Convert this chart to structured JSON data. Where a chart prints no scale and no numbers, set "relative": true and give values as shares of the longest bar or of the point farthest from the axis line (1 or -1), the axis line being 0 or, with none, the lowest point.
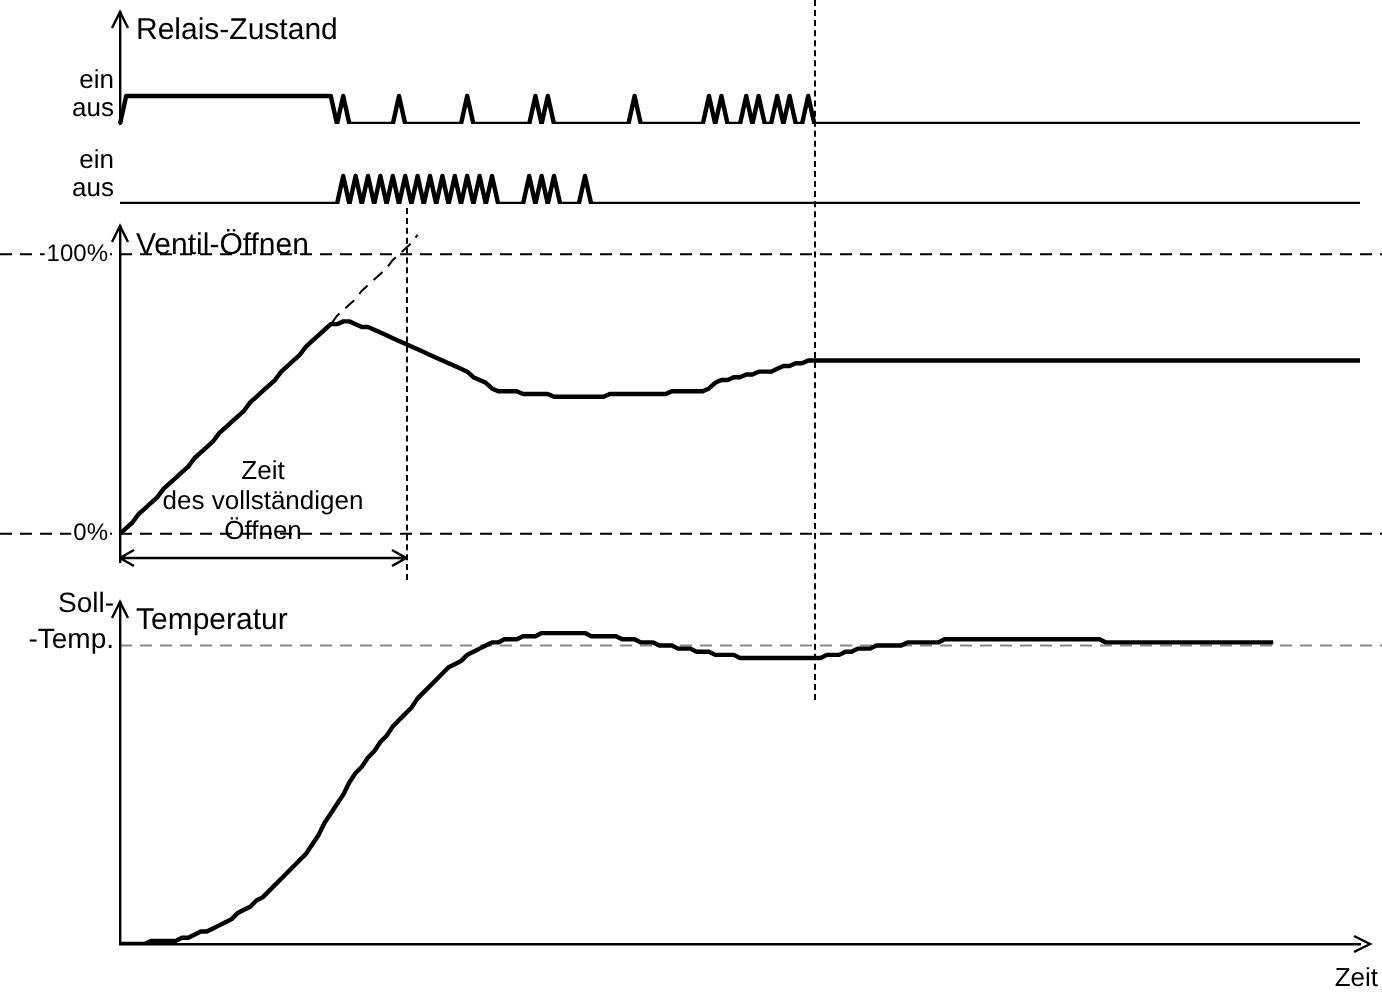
{
  "chart_data": [
    {
      "type": "line",
      "title": "Relais-Zustand",
      "relative": true,
      "tick_labels": false,
      "grid": false,
      "annotations": [
        "ein",
        "aus"
      ],
      "categories": [
        null,
        null,
        null,
        null,
        null,
        null,
        null,
        null,
        null,
        null,
        null,
        null,
        null,
        null,
        null,
        null,
        null,
        null,
        null,
        null,
        null,
        null,
        null,
        null,
        null,
        null,
        null,
        null,
        null,
        null,
        null,
        null,
        null,
        null,
        null,
        null,
        null,
        null,
        null,
        null,
        null,
        null,
        null,
        null,
        null,
        null,
        null,
        null,
        null,
        null,
        null,
        null,
        null,
        null,
        null,
        null,
        null,
        null,
        null,
        null,
        null,
        null,
        null,
        null,
        null,
        null,
        null,
        null,
        null,
        null,
        null,
        null,
        null,
        null,
        null,
        null,
        null,
        null,
        null,
        null,
        null,
        null,
        null,
        null,
        null,
        null,
        null,
        null,
        null,
        null,
        null,
        null,
        null,
        null,
        null,
        null,
        null,
        null,
        null,
        null,
        null,
        null,
        null,
        null,
        null,
        null,
        null,
        null,
        null,
        null,
        null,
        null,
        null,
        null,
        null,
        null,
        null,
        null,
        null,
        null,
        null,
        null,
        null,
        null,
        null,
        null,
        null,
        null,
        null,
        null,
        null,
        null,
        null,
        null,
        null,
        null,
        null,
        null,
        null,
        null,
        null,
        null,
        null,
        null,
        null,
        null,
        null,
        null,
        null,
        null,
        null,
        null,
        null,
        null,
        null,
        null,
        null,
        null,
        null,
        null,
        null,
        null,
        null,
        null,
        null,
        null,
        null,
        null,
        null,
        null,
        null,
        null,
        null,
        null,
        null,
        null,
        null,
        null,
        null,
        null,
        null,
        null,
        null,
        null,
        null,
        null,
        null,
        null,
        null,
        null,
        null,
        null,
        null,
        null,
        null,
        null,
        null,
        null,
        null,
        null,
        null
      ],
      "series": [
        {
          "color": "#000000",
          "values": [
            0,
            1,
            1,
            1,
            1,
            1,
            1,
            1,
            1,
            1,
            1,
            1,
            1,
            1,
            1,
            1,
            1,
            1,
            1,
            1,
            1,
            1,
            1,
            1,
            1,
            1,
            1,
            1,
            1,
            1,
            1,
            1,
            1,
            1,
            1,
            0,
            1,
            0,
            0,
            0,
            0,
            0,
            0,
            0,
            0,
            1,
            0,
            0,
            0,
            0,
            0,
            0,
            0,
            0,
            0,
            0,
            1,
            0,
            0,
            0,
            0,
            0,
            0,
            0,
            0,
            0,
            0,
            1,
            0,
            1,
            0,
            0,
            0,
            0,
            0,
            0,
            0,
            0,
            0,
            0,
            0,
            0,
            0,
            1,
            0,
            0,
            0,
            0,
            0,
            0,
            0,
            0,
            0,
            0,
            0,
            1,
            0,
            1,
            0,
            0,
            0,
            1,
            0,
            1,
            0,
            0,
            1,
            0,
            1,
            0,
            0,
            1,
            0,
            0,
            0,
            0,
            0,
            0,
            0,
            0,
            0,
            0,
            0,
            0,
            0,
            0,
            0,
            0,
            0,
            0,
            0,
            0,
            0,
            0,
            0,
            0,
            0,
            0,
            0,
            0,
            0,
            0,
            0,
            0,
            0,
            0,
            0,
            0,
            0,
            0,
            0,
            0,
            0,
            0,
            0,
            0,
            0,
            0,
            0,
            0,
            0,
            0,
            0,
            0,
            0,
            0,
            0,
            0,
            0,
            0,
            0,
            0,
            0,
            0,
            0,
            0,
            0,
            0,
            0,
            0,
            0,
            0,
            0,
            0,
            0,
            0,
            0,
            0,
            0,
            0,
            0,
            0,
            0,
            0,
            0,
            0,
            0,
            0,
            0,
            0,
            0
          ]
        }
      ]
    },
    {
      "type": "line",
      "relative": true,
      "tick_labels": false,
      "grid": false,
      "annotations": [
        "ein",
        "aus"
      ],
      "categories": [
        null,
        null,
        null,
        null,
        null,
        null,
        null,
        null,
        null,
        null,
        null,
        null,
        null,
        null,
        null,
        null,
        null,
        null,
        null,
        null,
        null,
        null,
        null,
        null,
        null,
        null,
        null,
        null,
        null,
        null,
        null,
        null,
        null,
        null,
        null,
        null,
        null,
        null,
        null,
        null,
        null,
        null,
        null,
        null,
        null,
        null,
        null,
        null,
        null,
        null,
        null,
        null,
        null,
        null,
        null,
        null,
        null,
        null,
        null,
        null,
        null,
        null,
        null,
        null,
        null,
        null,
        null,
        null,
        null,
        null,
        null,
        null,
        null,
        null,
        null,
        null,
        null,
        null,
        null,
        null,
        null,
        null,
        null,
        null,
        null,
        null,
        null,
        null,
        null,
        null,
        null,
        null,
        null,
        null,
        null,
        null,
        null,
        null,
        null,
        null,
        null,
        null,
        null,
        null,
        null,
        null,
        null,
        null,
        null,
        null,
        null,
        null,
        null,
        null,
        null,
        null,
        null,
        null,
        null,
        null,
        null,
        null,
        null,
        null,
        null,
        null,
        null,
        null,
        null,
        null,
        null,
        null,
        null,
        null,
        null,
        null,
        null,
        null,
        null,
        null,
        null,
        null,
        null,
        null,
        null,
        null,
        null,
        null,
        null,
        null,
        null,
        null,
        null,
        null,
        null,
        null,
        null,
        null,
        null,
        null,
        null,
        null,
        null,
        null,
        null,
        null,
        null,
        null,
        null,
        null,
        null,
        null,
        null,
        null,
        null,
        null,
        null,
        null,
        null,
        null,
        null,
        null,
        null,
        null,
        null,
        null,
        null,
        null,
        null,
        null,
        null,
        null,
        null,
        null,
        null,
        null,
        null,
        null,
        null,
        null,
        null
      ],
      "series": [
        {
          "color": "#000000",
          "values": [
            0,
            0,
            0,
            0,
            0,
            0,
            0,
            0,
            0,
            0,
            0,
            0,
            0,
            0,
            0,
            0,
            0,
            0,
            0,
            0,
            0,
            0,
            0,
            0,
            0,
            0,
            0,
            0,
            0,
            0,
            0,
            0,
            0,
            0,
            0,
            0,
            1,
            0,
            1,
            0,
            1,
            0,
            1,
            0,
            1,
            0,
            1,
            0,
            1,
            0,
            1,
            0,
            1,
            0,
            1,
            0,
            1,
            0,
            1,
            0,
            1,
            0,
            0,
            0,
            0,
            0,
            1,
            0,
            1,
            0,
            1,
            0,
            0,
            0,
            0,
            1,
            0,
            0,
            0,
            0,
            0,
            0,
            0,
            0,
            0,
            0,
            0,
            0,
            0,
            0,
            0,
            0,
            0,
            0,
            0,
            0,
            0,
            0,
            0,
            0,
            0,
            0,
            0,
            0,
            0,
            0,
            0,
            0,
            0,
            0,
            0,
            0,
            0,
            0,
            0,
            0,
            0,
            0,
            0,
            0,
            0,
            0,
            0,
            0,
            0,
            0,
            0,
            0,
            0,
            0,
            0,
            0,
            0,
            0,
            0,
            0,
            0,
            0,
            0,
            0,
            0,
            0,
            0,
            0,
            0,
            0,
            0,
            0,
            0,
            0,
            0,
            0,
            0,
            0,
            0,
            0,
            0,
            0,
            0,
            0,
            0,
            0,
            0,
            0,
            0,
            0,
            0,
            0,
            0,
            0,
            0,
            0,
            0,
            0,
            0,
            0,
            0,
            0,
            0,
            0,
            0,
            0,
            0,
            0,
            0,
            0,
            0,
            0,
            0,
            0,
            0,
            0,
            0,
            0,
            0,
            0,
            0,
            0,
            0,
            0,
            0
          ]
        }
      ]
    },
    {
      "type": "line",
      "title": "Ventil-Öffnen",
      "ylim": [
        -10,
        110
      ],
      "yticks": [
        {
          "value": 0,
          "label": "0%"
        },
        {
          "value": 100,
          "label": "100%"
        }
      ],
      "tick_labels": "y",
      "grid": false,
      "categories": [
        null,
        null,
        null,
        null,
        null,
        null,
        null,
        null,
        null,
        null,
        null,
        null,
        null,
        null,
        null,
        null,
        null,
        null,
        null,
        null,
        null,
        null,
        null,
        null,
        null,
        null,
        null,
        null,
        null,
        null,
        null,
        null,
        null,
        null,
        null,
        null,
        null,
        null,
        null,
        null,
        null,
        null,
        null,
        null,
        null,
        null,
        null,
        null,
        null,
        null,
        null,
        null,
        null,
        null,
        null,
        null,
        null,
        null,
        null,
        null,
        null,
        null,
        null,
        null,
        null,
        null,
        null,
        null,
        null,
        null,
        null,
        null,
        null,
        null,
        null,
        null,
        null,
        null,
        null,
        null,
        null,
        null,
        null,
        null,
        null,
        null,
        null,
        null,
        null,
        null,
        null,
        null,
        null,
        null,
        null,
        null,
        null,
        null,
        null,
        null,
        null,
        null,
        null,
        null,
        null,
        null,
        null,
        null,
        null,
        null,
        null,
        null,
        null,
        null,
        null,
        null,
        null,
        null,
        null,
        null,
        null,
        null,
        null,
        null,
        null,
        null,
        null,
        null,
        null,
        null,
        null,
        null,
        null,
        null,
        null,
        null,
        null,
        null,
        null,
        null,
        null,
        null,
        null,
        null,
        null,
        null,
        null,
        null,
        null,
        null,
        null,
        null,
        null,
        null,
        null,
        null,
        null,
        null,
        null,
        null,
        null,
        null,
        null,
        null,
        null,
        null,
        null,
        null,
        null,
        null,
        null,
        null,
        null,
        null,
        null,
        null,
        null,
        null,
        null,
        null,
        null,
        null,
        null,
        null,
        null,
        null,
        null,
        null,
        null,
        null,
        null,
        null,
        null,
        null,
        null,
        null,
        null,
        null,
        null,
        null,
        null
      ],
      "series": [
        {
          "color": "#000000",
          "values": [
            0,
            2,
            4,
            7,
            9,
            11,
            13,
            16,
            18,
            20,
            22,
            24,
            27,
            29,
            31,
            33,
            36,
            38,
            40,
            42,
            44,
            47,
            49,
            51,
            53,
            55,
            58,
            60,
            62,
            64,
            67,
            69,
            71,
            73,
            75,
            75,
            76,
            76,
            75,
            74,
            74,
            73,
            72,
            71,
            70,
            69,
            68,
            67,
            66,
            65,
            64,
            63,
            62,
            61,
            60,
            59,
            58,
            56,
            55,
            54,
            52,
            51,
            51,
            51,
            51,
            50,
            50,
            50,
            50,
            50,
            49,
            49,
            49,
            49,
            49,
            49,
            49,
            49,
            49,
            50,
            50,
            50,
            50,
            50,
            50,
            50,
            50,
            50,
            50,
            51,
            51,
            51,
            51,
            51,
            51,
            52,
            54,
            55,
            55,
            56,
            56,
            57,
            57,
            58,
            58,
            58,
            59,
            60,
            60,
            61,
            61,
            62,
            62,
            62,
            62,
            62,
            62,
            62,
            62,
            62,
            62,
            62,
            62,
            62,
            62,
            62,
            62,
            62,
            62,
            62,
            62,
            62,
            62,
            62,
            62,
            62,
            62,
            62,
            62,
            62,
            62,
            62,
            62,
            62,
            62,
            62,
            62,
            62,
            62,
            62,
            62,
            62,
            62,
            62,
            62,
            62,
            62,
            62,
            62,
            62,
            62,
            62,
            62,
            62,
            62,
            62,
            62,
            62,
            62,
            62,
            62,
            62,
            62,
            62,
            62,
            62,
            62,
            62,
            62,
            62,
            62,
            62,
            62,
            62,
            62,
            62,
            62,
            62,
            62,
            62,
            62,
            62,
            62,
            62,
            62,
            62,
            62,
            62,
            62,
            62,
            62
          ]
        },
        {
          "color": "#000000",
          "line_style": "dashed",
          "values": [
            0,
            2,
            4,
            7,
            9,
            11,
            13,
            16,
            18,
            20,
            22,
            24,
            27,
            29,
            31,
            33,
            36,
            38,
            40,
            42,
            44,
            47,
            49,
            51,
            53,
            55,
            58,
            60,
            62,
            64,
            67,
            69,
            71,
            73,
            75,
            78,
            80,
            82,
            84,
            87,
            89,
            91,
            93,
            95,
            98,
            100,
            102,
            104,
            107,
            null,
            null,
            null,
            null,
            null,
            null,
            null,
            null,
            null,
            null,
            null,
            null,
            null,
            null,
            null,
            null,
            null,
            null,
            null,
            null,
            null,
            null,
            null,
            null,
            null,
            null,
            null,
            null,
            null,
            null,
            null,
            null,
            null,
            null,
            null,
            null,
            null,
            null,
            null,
            null,
            null,
            null,
            null,
            null,
            null,
            null,
            null,
            null,
            null,
            null,
            null,
            null,
            null,
            null,
            null,
            null,
            null,
            null,
            null,
            null,
            null,
            null,
            null,
            null,
            null,
            null,
            null,
            null,
            null,
            null,
            null,
            null,
            null,
            null,
            null,
            null,
            null,
            null,
            null,
            null,
            null,
            null,
            null,
            null,
            null,
            null,
            null,
            null,
            null,
            null,
            null,
            null,
            null,
            null,
            null,
            null,
            null,
            null,
            null,
            null,
            null,
            null,
            null,
            null,
            null,
            null,
            null,
            null,
            null,
            null,
            null,
            null,
            null,
            null,
            null,
            null,
            null,
            null,
            null,
            null,
            null,
            null,
            null,
            null,
            null,
            null,
            null,
            null,
            null,
            null,
            null,
            null,
            null,
            null,
            null,
            null,
            null,
            null,
            null,
            null,
            null,
            null,
            null,
            null,
            null,
            null,
            null,
            null,
            null,
            null,
            null,
            null
          ]
        }
      ],
      "ref_lines": [
        {
          "axis": "y",
          "value": 100,
          "color": "#000000",
          "line_style": "dashed"
        },
        {
          "axis": "y",
          "value": 0,
          "color": "#000000",
          "line_style": "dashed"
        }
      ],
      "annotations": [
        "Zeit\ndes vollständigen\nÖffnen"
      ]
    },
    {
      "type": "line",
      "title": "Temperatur",
      "xlabel": "Zeit",
      "relative": true,
      "tick_labels": false,
      "grid": false,
      "categories": [
        null,
        null,
        null,
        null,
        null,
        null,
        null,
        null,
        null,
        null,
        null,
        null,
        null,
        null,
        null,
        null,
        null,
        null,
        null,
        null,
        null,
        null,
        null,
        null,
        null,
        null,
        null,
        null,
        null,
        null,
        null,
        null,
        null,
        null,
        null,
        null,
        null,
        null,
        null,
        null,
        null,
        null,
        null,
        null,
        null,
        null,
        null,
        null,
        null,
        null,
        null,
        null,
        null,
        null,
        null,
        null,
        null,
        null,
        null,
        null,
        null,
        null,
        null,
        null,
        null,
        null,
        null,
        null,
        null,
        null,
        null,
        null,
        null,
        null,
        null,
        null,
        null,
        null,
        null,
        null,
        null,
        null,
        null,
        null,
        null,
        null,
        null,
        null,
        null,
        null,
        null,
        null,
        null,
        null,
        null,
        null,
        null,
        null,
        null,
        null,
        null,
        null,
        null,
        null,
        null,
        null,
        null,
        null,
        null,
        null,
        null,
        null,
        null,
        null,
        null,
        null,
        null,
        null,
        null,
        null,
        null,
        null,
        null,
        null,
        null,
        null,
        null,
        null,
        null,
        null,
        null,
        null,
        null,
        null,
        null,
        null,
        null,
        null,
        null,
        null,
        null,
        null,
        null,
        null,
        null,
        null,
        null,
        null,
        null,
        null,
        null,
        null,
        null,
        null,
        null,
        null,
        null,
        null,
        null,
        null,
        null,
        null,
        null,
        null,
        null,
        null,
        null,
        null,
        null,
        null,
        null,
        null,
        null,
        null,
        null,
        null,
        null,
        null,
        null,
        null,
        null,
        null,
        null,
        null,
        null,
        null,
        null,
        null,
        null,
        null,
        null,
        null,
        null,
        null,
        null,
        null,
        null,
        null,
        null,
        null,
        null
      ],
      "series": [
        {
          "color": "#000000",
          "values": [
            0,
            0,
            0,
            0,
            0,
            0.01,
            0.01,
            0.01,
            0.01,
            0.01,
            0.02,
            0.02,
            0.03,
            0.04,
            0.04,
            0.05,
            0.06,
            0.07,
            0.08,
            0.1,
            0.11,
            0.12,
            0.14,
            0.15,
            0.17,
            0.19,
            0.21,
            0.23,
            0.25,
            0.27,
            0.29,
            0.32,
            0.35,
            0.39,
            0.42,
            0.45,
            0.48,
            0.52,
            0.55,
            0.57,
            0.6,
            0.62,
            0.65,
            0.67,
            0.7,
            0.72,
            0.74,
            0.76,
            0.79,
            0.81,
            0.83,
            0.85,
            0.87,
            0.89,
            0.9,
            0.91,
            0.93,
            0.94,
            0.95,
            0.96,
            0.97,
            0.97,
            0.98,
            0.98,
            0.98,
            0.99,
            0.99,
            0.99,
            1,
            1,
            1,
            1,
            1,
            1,
            1,
            1,
            0.99,
            0.99,
            0.99,
            0.99,
            0.99,
            0.98,
            0.98,
            0.98,
            0.97,
            0.97,
            0.97,
            0.96,
            0.96,
            0.96,
            0.95,
            0.95,
            0.95,
            0.94,
            0.94,
            0.94,
            0.93,
            0.93,
            0.93,
            0.93,
            0.92,
            0.92,
            0.92,
            0.92,
            0.92,
            0.92,
            0.92,
            0.92,
            0.92,
            0.92,
            0.92,
            0.92,
            0.92,
            0.92,
            0.93,
            0.93,
            0.93,
            0.94,
            0.94,
            0.95,
            0.95,
            0.95,
            0.96,
            0.96,
            0.96,
            0.96,
            0.96,
            0.97,
            0.97,
            0.97,
            0.97,
            0.97,
            0.97,
            0.98,
            0.98,
            0.98,
            0.98,
            0.98,
            0.98,
            0.98,
            0.98,
            0.98,
            0.98,
            0.98,
            0.98,
            0.98,
            0.98,
            0.98,
            0.98,
            0.98,
            0.98,
            0.98,
            0.98,
            0.98,
            0.98,
            0.98,
            0.98,
            0.98,
            0.98,
            0.97,
            0.97,
            0.97,
            0.97,
            0.97,
            0.97,
            0.97,
            0.97,
            0.97,
            0.97,
            0.97,
            0.97,
            0.97,
            0.97,
            0.97,
            0.97,
            0.97,
            0.97,
            0.97,
            0.97,
            0.97,
            0.97,
            0.97,
            0.97,
            0.97,
            0.97,
            0.97,
            0.97,
            null,
            null,
            null,
            null,
            null,
            null,
            null,
            null,
            null,
            null,
            null,
            null,
            null,
            null
          ]
        }
      ],
      "ref_lines": [
        {
          "axis": "y",
          "value": 0.96,
          "label": "Soll-\n-Temp.",
          "color": "#888888",
          "line_style": "dashed"
        }
      ]
    }
  ]
}
